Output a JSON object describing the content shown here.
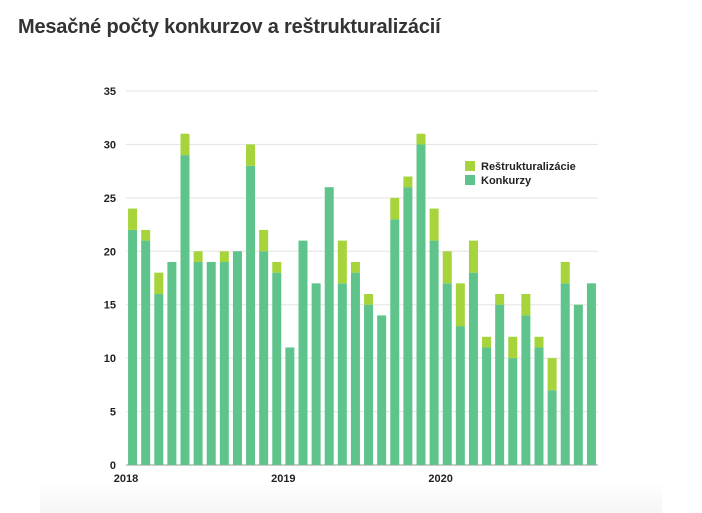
{
  "title": "Mesačné počty konkurzov a reštrukturalizácií",
  "chart_data": {
    "type": "bar",
    "stacked": true,
    "ylim": [
      0,
      35
    ],
    "yticks": [
      0,
      5,
      10,
      15,
      20,
      25,
      30,
      35
    ],
    "xtick_labels": [
      {
        "index": 0,
        "label": "2018"
      },
      {
        "index": 12,
        "label": "2019"
      },
      {
        "index": 24,
        "label": "2020"
      }
    ],
    "grid": true,
    "legend_position": "top-right",
    "series": [
      {
        "name": "Konkurzy",
        "color": "#5ec48b",
        "values": [
          22,
          21,
          16,
          19,
          29,
          19,
          19,
          19,
          20,
          28,
          20,
          18,
          11,
          21,
          17,
          26,
          17,
          18,
          15,
          14,
          23,
          26,
          30,
          21,
          17,
          13,
          18,
          11,
          15,
          10,
          14,
          11,
          7,
          17,
          15,
          17
        ]
      },
      {
        "name": "Reštrukturalizácie",
        "color": "#a6d43a",
        "values": [
          2,
          1,
          2,
          0,
          2,
          1,
          0,
          1,
          0,
          2,
          2,
          1,
          0,
          0,
          0,
          0,
          4,
          1,
          1,
          0,
          2,
          1,
          1,
          3,
          3,
          4,
          3,
          1,
          1,
          2,
          2,
          1,
          3,
          2,
          0,
          0
        ]
      }
    ]
  }
}
